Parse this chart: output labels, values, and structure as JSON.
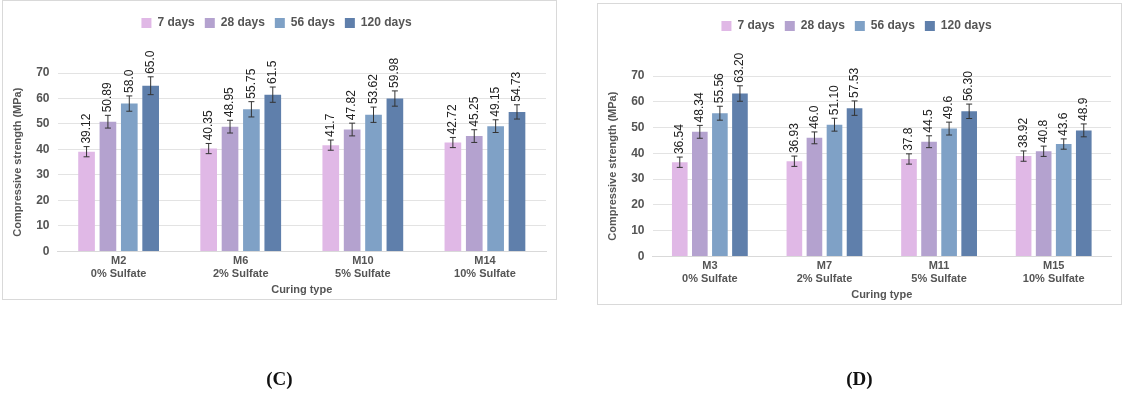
{
  "chart_data": [
    {
      "type": "bar",
      "xlabel": "Curing type",
      "ylabel": "Compressive strength (MPa)",
      "categories": [
        "M2\n0% Sulfate",
        "M6\n2% Sulfate",
        "M10\n5% Sulfate",
        "M14\n10% Sulfate"
      ],
      "series": [
        {
          "name": "7 days",
          "color": "#e0b8e6",
          "values": [
            39.12,
            40.35,
            41.7,
            42.72
          ],
          "errors": [
            2,
            2,
            2,
            2
          ],
          "value_labels": [
            "39.12",
            "40.35",
            "41.7",
            "42.72"
          ]
        },
        {
          "name": "28 days",
          "color": "#b4a2cf",
          "values": [
            50.89,
            48.95,
            47.82,
            45.25
          ],
          "errors": [
            2.5,
            2.5,
            2.5,
            2.5
          ],
          "value_labels": [
            "50.89",
            "48.95",
            "47.82",
            "45.25"
          ]
        },
        {
          "name": "56 days",
          "color": "#7fa1c6",
          "values": [
            58.0,
            55.75,
            53.62,
            49.15
          ],
          "errors": [
            3,
            3,
            3,
            2.5
          ],
          "value_labels": [
            "58.0",
            "55.75",
            "53.62",
            "49.15"
          ]
        },
        {
          "name": "120 days",
          "color": "#5f7fab",
          "values": [
            65.0,
            61.5,
            59.98,
            54.73
          ],
          "errors": [
            3.5,
            3,
            3,
            2.8
          ],
          "value_labels": [
            "65.0",
            "61.5",
            "59.98",
            "54.73"
          ]
        }
      ],
      "ylim": [
        0,
        70
      ],
      "yticks": [
        0,
        10,
        20,
        30,
        40,
        50,
        60,
        70
      ],
      "grid": "y",
      "legend": "top",
      "annotations": [
        "(C)"
      ]
    },
    {
      "type": "bar",
      "xlabel": "Curing type",
      "ylabel": "Compressive strength (MPa)",
      "categories": [
        "M3\n0% Sulfate",
        "M7\n2% Sulfate",
        "M11\n5% Sulfate",
        "M15\n10% Sulfate"
      ],
      "series": [
        {
          "name": "7 days",
          "color": "#e0b8e6",
          "values": [
            36.54,
            36.93,
            37.8,
            38.92
          ],
          "errors": [
            2,
            2,
            2,
            2
          ],
          "value_labels": [
            "36.54",
            "36.93",
            "37.8",
            "38.92"
          ]
        },
        {
          "name": "28 days",
          "color": "#b4a2cf",
          "values": [
            48.34,
            46.0,
            44.5,
            40.8
          ],
          "errors": [
            2.5,
            2.3,
            2.3,
            2
          ],
          "value_labels": [
            "48.34",
            "46.0",
            "44.5",
            "40.8"
          ]
        },
        {
          "name": "56 days",
          "color": "#7fa1c6",
          "values": [
            55.56,
            51.1,
            49.6,
            43.6
          ],
          "errors": [
            2.7,
            2.5,
            2.5,
            2
          ],
          "value_labels": [
            "55.56",
            "51.10",
            "49.6",
            "43.6"
          ]
        },
        {
          "name": "120 days",
          "color": "#5f7fab",
          "values": [
            63.2,
            57.53,
            56.3,
            48.9
          ],
          "errors": [
            3,
            2.8,
            2.8,
            2.5
          ],
          "value_labels": [
            "63.20",
            "57.53",
            "56.30",
            "48.9"
          ]
        }
      ],
      "ylim": [
        0,
        70
      ],
      "yticks": [
        0,
        10,
        20,
        30,
        40,
        50,
        60,
        70
      ],
      "grid": "y",
      "legend": "top",
      "annotations": [
        "(D)"
      ]
    }
  ]
}
